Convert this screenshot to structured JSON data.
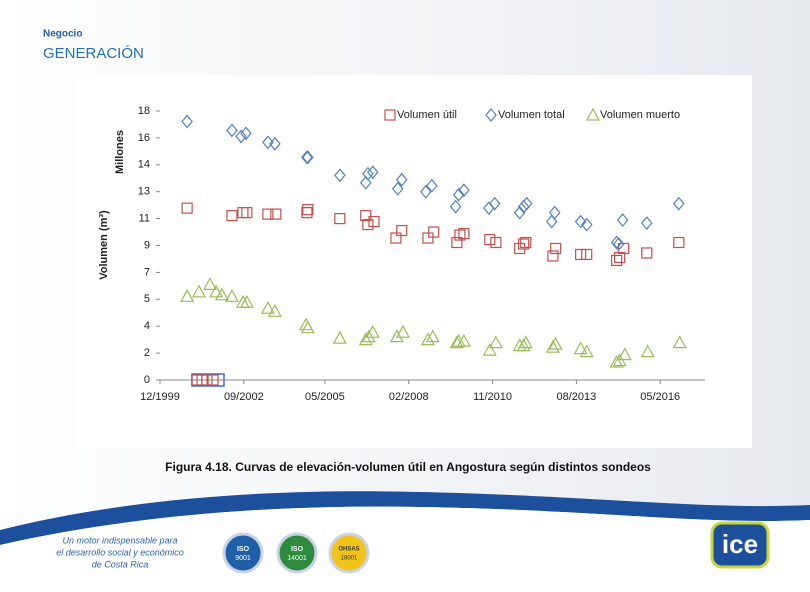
{
  "header": {
    "unit": "Negocio",
    "title": "GENERACIÓN"
  },
  "chart_data": {
    "type": "scatter",
    "ylabel": "Volumen (m³)",
    "yunit": "Millones",
    "xlim": [
      1999.92,
      2017.8
    ],
    "xticks": [
      {
        "value": 1999.92,
        "label": "12/1999"
      },
      {
        "value": 2002.67,
        "label": "09/2002"
      },
      {
        "value": 2005.33,
        "label": "05/2005"
      },
      {
        "value": 2008.08,
        "label": "02/2008"
      },
      {
        "value": 2010.83,
        "label": "11/2010"
      },
      {
        "value": 2013.58,
        "label": "08/2013"
      },
      {
        "value": 2016.33,
        "label": "05/2016"
      }
    ],
    "ylim": [
      0,
      18
    ],
    "yticks": [
      0,
      {
        "value": 1.8,
        "label": "2"
      },
      {
        "value": 3.6,
        "label": "4"
      },
      {
        "value": 5.4,
        "label": "5"
      },
      {
        "value": 7.2,
        "label": "7"
      },
      9,
      {
        "value": 10.8,
        "label": "11"
      },
      {
        "value": 12.6,
        "label": "13"
      },
      {
        "value": 14.4,
        "label": "14"
      },
      {
        "value": 16.2,
        "label": "16"
      },
      18
    ],
    "grid": false,
    "legend": "top-right",
    "series": [
      {
        "name": "Volumen útil",
        "color": "#c0504d",
        "marker": "square",
        "x": [
          2000.81,
          2001.13,
          2001.3,
          2001.46,
          2001.66,
          2002.28,
          2002.64,
          2002.77,
          2003.46,
          2003.72,
          2004.74,
          2004.77,
          2005.82,
          2006.67,
          2006.74,
          2006.94,
          2007.66,
          2007.85,
          2008.71,
          2008.9,
          2009.66,
          2009.76,
          2009.89,
          2010.74,
          2010.94,
          2011.72,
          2011.85,
          2011.92,
          2012.81,
          2012.9,
          2013.72,
          2013.92,
          2014.9,
          2015.0,
          2015.13,
          2015.89,
          2016.94
        ],
        "values": [
          11.5,
          0,
          0,
          0,
          0,
          11.0,
          11.2,
          11.2,
          11.1,
          11.1,
          11.2,
          11.4,
          10.8,
          11.0,
          10.4,
          10.6,
          9.5,
          10.0,
          9.5,
          9.9,
          9.2,
          9.7,
          9.8,
          9.4,
          9.2,
          8.8,
          9.1,
          9.2,
          8.3,
          8.8,
          8.4,
          8.4,
          8.0,
          8.2,
          8.8,
          8.5,
          9.2
        ]
      },
      {
        "name": "Volumen total",
        "color": "#4f81bd",
        "marker": "diamond",
        "x": [
          2000.81,
          2002.28,
          2002.58,
          2002.74,
          2003.46,
          2003.69,
          2004.74,
          2004.77,
          2005.82,
          2006.67,
          2006.74,
          2006.9,
          2007.72,
          2007.85,
          2008.64,
          2008.84,
          2009.62,
          2009.72,
          2009.89,
          2010.71,
          2010.9,
          2011.72,
          2011.85,
          2011.95,
          2012.77,
          2012.87,
          2013.72,
          2013.92,
          2014.9,
          2014.97,
          2015.1,
          2015.89,
          2016.94
        ],
        "values": [
          17.3,
          16.7,
          16.3,
          16.5,
          15.9,
          15.8,
          14.9,
          14.9,
          13.7,
          13.2,
          13.8,
          13.9,
          12.8,
          13.4,
          12.6,
          13.0,
          11.6,
          12.4,
          12.7,
          11.5,
          11.8,
          11.2,
          11.6,
          11.8,
          10.6,
          11.2,
          10.6,
          10.4,
          9.2,
          9.1,
          10.7,
          10.5,
          11.8
        ]
      },
      {
        "name": "Volumen muerto",
        "color": "#9bbb59",
        "marker": "triangle",
        "x": [
          2000.81,
          2001.2,
          2001.56,
          2001.76,
          2001.95,
          2002.28,
          2002.64,
          2002.77,
          2003.46,
          2003.69,
          2004.71,
          2004.77,
          2005.82,
          2006.67,
          2006.77,
          2006.9,
          2007.69,
          2007.89,
          2008.71,
          2008.87,
          2009.66,
          2009.72,
          2009.89,
          2010.74,
          2010.94,
          2011.72,
          2011.85,
          2011.92,
          2012.81,
          2012.9,
          2013.72,
          2013.92,
          2014.9,
          2015.0,
          2015.17,
          2015.92,
          2016.97
        ],
        "values": [
          5.6,
          5.9,
          6.4,
          5.9,
          5.7,
          5.6,
          5.2,
          5.2,
          4.8,
          4.6,
          3.7,
          3.5,
          2.8,
          2.7,
          2.9,
          3.2,
          2.9,
          3.2,
          2.7,
          2.9,
          2.5,
          2.6,
          2.6,
          2.0,
          2.5,
          2.3,
          2.3,
          2.5,
          2.2,
          2.4,
          2.1,
          1.9,
          1.2,
          1.3,
          1.7,
          1.9,
          2.5
        ]
      }
    ]
  },
  "caption": "Figura 4.18. Curvas de elevación-volumen útil en Angostura según distintos sondeos",
  "footer": {
    "slogan": [
      "Un motor indispensable para",
      "el desarrollo social y económico",
      "de Costa Rica"
    ],
    "badges": [
      {
        "name": "ISO",
        "code": "9001"
      },
      {
        "name": "ISO",
        "code": "14001"
      },
      {
        "name": "OHSAS",
        "code": "18001"
      }
    ],
    "logo": "ice"
  }
}
